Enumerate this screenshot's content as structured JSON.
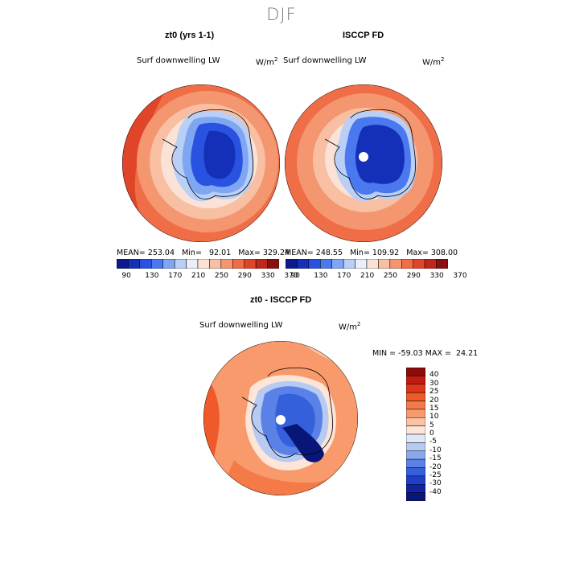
{
  "season": "DJF",
  "panels": [
    {
      "title": "zt0 (yrs 1-1)",
      "variable": "Surf downwelling LW",
      "units_base": "W/m",
      "units_exp": "2",
      "stats": "MEAN= 253.04   Min=   92.01   Max= 329.24",
      "colorbar_ticks": [
        "90",
        "130",
        "170",
        "210",
        "250",
        "290",
        "330",
        "370"
      ]
    },
    {
      "title": "ISCCP FD",
      "variable": "Surf downwelling LW",
      "units_base": "W/m",
      "units_exp": "2",
      "stats": "MEAN= 248.55   Min= 109.92   Max= 308.00",
      "colorbar_ticks": [
        "90",
        "130",
        "170",
        "210",
        "250",
        "290",
        "330",
        "370"
      ]
    },
    {
      "title": "zt0 - ISCCP FD",
      "variable": "Surf downwelling LW",
      "units_base": "W/m",
      "units_exp": "2",
      "stats": "MIN = -59.03 MAX =  24.21",
      "colorbar_ticks": [
        "40",
        "30",
        "25",
        "20",
        "15",
        "10",
        "5",
        "0",
        "-5",
        "-10",
        "-15",
        "-20",
        "-25",
        "-30",
        "-40"
      ]
    }
  ],
  "colors": {
    "abs_scale": [
      "#0c1a8e",
      "#1530b8",
      "#2a52e0",
      "#4a78ee",
      "#7fa6f2",
      "#b9cff6",
      "#e9eef8",
      "#fbe2d6",
      "#f8bfa2",
      "#f4966f",
      "#ef6e47",
      "#e0452a",
      "#c0261a",
      "#8a0f0e"
    ],
    "diff_scale": [
      "#8b0a0a",
      "#c21b12",
      "#e0351a",
      "#f05a2a",
      "#f47a48",
      "#f89a6c",
      "#fbc3a6",
      "#fde6d8",
      "#dfe8f6",
      "#b7caf2",
      "#8aa8ee",
      "#5a82e6",
      "#3560dc",
      "#1f3fc8",
      "#0f23a3",
      "#081678"
    ]
  }
}
